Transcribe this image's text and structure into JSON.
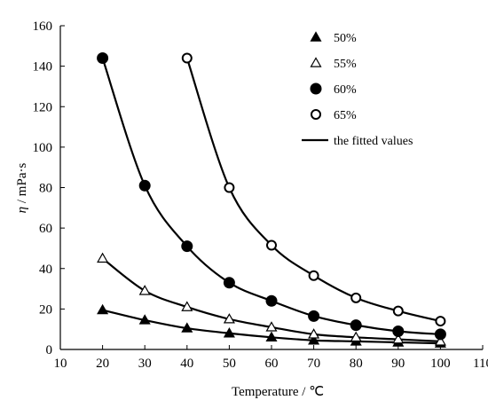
{
  "chart_data": {
    "type": "scatter",
    "xlabel": "Temperature / ℃",
    "ylabel": "η / mPa·s",
    "ylabel_symbol": "η",
    "ylabel_unit": " / mPa·s",
    "xlim": [
      10,
      110
    ],
    "ylim": [
      0,
      160
    ],
    "xticks": [
      "10",
      "20",
      "30",
      "40",
      "50",
      "60",
      "70",
      "80",
      "90",
      "100",
      "110"
    ],
    "yticks": [
      "0",
      "20",
      "40",
      "60",
      "80",
      "100",
      "120",
      "140",
      "160"
    ],
    "grid": false,
    "legend_position": "top-right",
    "series": [
      {
        "name": "50%",
        "marker": "filled-triangle",
        "x": [
          20,
          30,
          40,
          50,
          60,
          70,
          80,
          90,
          100
        ],
        "y": [
          19.5,
          14.5,
          10.5,
          8,
          6,
          4.5,
          4,
          3.5,
          3
        ]
      },
      {
        "name": "55%",
        "marker": "open-triangle",
        "x": [
          20,
          30,
          40,
          50,
          60,
          70,
          80,
          90,
          100
        ],
        "y": [
          45,
          29,
          21,
          15,
          11,
          7.5,
          6,
          5,
          4
        ]
      },
      {
        "name": "60%",
        "marker": "filled-circle",
        "x": [
          20,
          30,
          40,
          50,
          60,
          70,
          80,
          90,
          100
        ],
        "y": [
          144,
          81,
          51,
          33,
          24,
          16.5,
          12,
          9,
          7.5
        ]
      },
      {
        "name": "65%",
        "marker": "open-circle",
        "x": [
          40,
          50,
          60,
          70,
          80,
          90,
          100
        ],
        "y": [
          144,
          80,
          51.5,
          36.5,
          25.5,
          19,
          14
        ]
      }
    ],
    "fitted_label": "the fitted values"
  }
}
